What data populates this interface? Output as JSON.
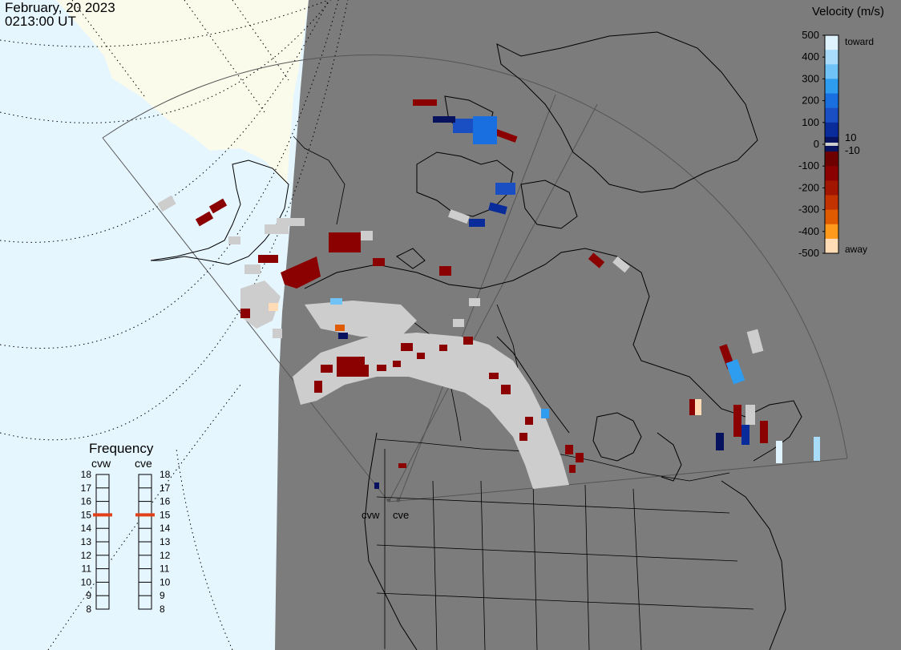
{
  "header": {
    "date": "February, 20 2023",
    "time": "0213:00 UT"
  },
  "colorbar": {
    "title": "Velocity (m/s)",
    "ticks": [
      "500",
      "400",
      "300",
      "200",
      "100",
      "0",
      "-100",
      "-200",
      "-300",
      "-400",
      "-500"
    ],
    "inner_ticks": [
      "10",
      "-10"
    ],
    "end_labels": {
      "top": "toward",
      "bottom": "away"
    },
    "colors": [
      "#dff3ff",
      "#a9dcfb",
      "#6fc3f7",
      "#2e9df0",
      "#1a6fe0",
      "#1a4fc4",
      "#0a2c9a",
      "#07135e",
      "#6e0000",
      "#8b0000",
      "#a21500",
      "#c23300",
      "#e05a00",
      "#ff9a1c",
      "#ffdcb5"
    ],
    "range": [
      -500,
      500
    ]
  },
  "frequency": {
    "title": "Frequency",
    "radars": [
      {
        "name": "cvw",
        "value": 15
      },
      {
        "name": "cve",
        "value": 15
      }
    ],
    "scale": [
      "18",
      "17",
      "16",
      "15",
      "14",
      "13",
      "12",
      "11",
      "10",
      "9",
      "8"
    ]
  },
  "map": {
    "night_color": "#7c7c7c",
    "day_color": "#e6f6ff",
    "land_day_color": "#fbfbec",
    "ground_scatter_color": "#cdcdcd",
    "site_labels": [
      "cvw",
      "cve"
    ]
  }
}
